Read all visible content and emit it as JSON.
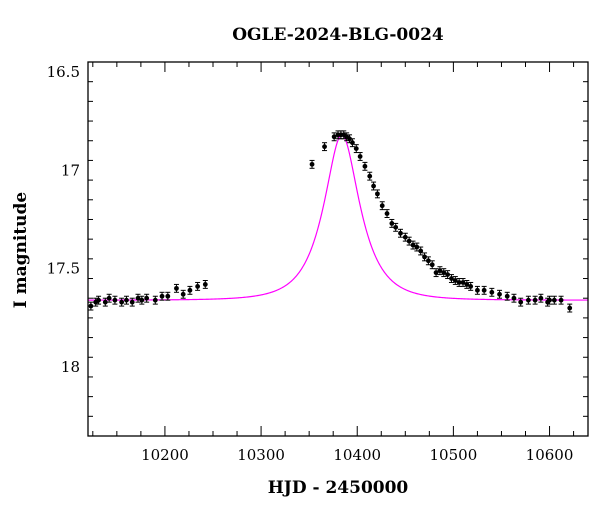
{
  "chart_data": {
    "type": "scatter",
    "title": "OGLE-2024-BLG-0024",
    "xlabel": "HJD - 2450000",
    "ylabel": "I magnitude",
    "xlim": [
      10120,
      10640
    ],
    "ylim": [
      18.35,
      16.45
    ],
    "y_inverted": true,
    "x_ticks": [
      10200,
      10300,
      10400,
      10500,
      10600
    ],
    "y_ticks": [
      16.5,
      17,
      17.5,
      18
    ],
    "y_tick_labels": [
      "16.5",
      "17",
      "17.5",
      "18"
    ],
    "colors": {
      "model": "#ff00ff",
      "points": "#000000",
      "axes": "#000000"
    },
    "model": {
      "name": "",
      "t0": 10384,
      "baseline": 17.66,
      "peak": 16.82,
      "tE": 32
    },
    "series": [
      {
        "name": "",
        "x": [
          10123,
          10128,
          10131,
          10138,
          10142,
          10148,
          10155,
          10160,
          10166,
          10172,
          10176,
          10181,
          10190,
          10197,
          10203,
          10212,
          10219,
          10226,
          10234,
          10242,
          10353,
          10366,
          10376,
          10380,
          10383,
          10386,
          10389,
          10392,
          10395,
          10399,
          10403,
          10408,
          10413,
          10417,
          10421,
          10426,
          10431,
          10436,
          10440,
          10445,
          10450,
          10454,
          10458,
          10462,
          10466,
          10470,
          10474,
          10478,
          10482,
          10486,
          10490,
          10494,
          10498,
          10502,
          10506,
          10510,
          10514,
          10518,
          10525,
          10532,
          10540,
          10548,
          10556,
          10563,
          10570,
          10578,
          10585,
          10591,
          10598,
          10600,
          10605,
          10612,
          10621
        ],
        "y": [
          17.69,
          17.67,
          17.66,
          17.67,
          17.65,
          17.66,
          17.67,
          17.66,
          17.67,
          17.65,
          17.66,
          17.65,
          17.66,
          17.64,
          17.64,
          17.6,
          17.63,
          17.61,
          17.59,
          17.58,
          16.97,
          16.88,
          16.83,
          16.82,
          16.82,
          16.82,
          16.83,
          16.84,
          16.86,
          16.89,
          16.93,
          16.98,
          17.03,
          17.08,
          17.12,
          17.18,
          17.22,
          17.27,
          17.29,
          17.32,
          17.34,
          17.36,
          17.38,
          17.39,
          17.41,
          17.44,
          17.46,
          17.48,
          17.52,
          17.51,
          17.52,
          17.53,
          17.55,
          17.56,
          17.57,
          17.57,
          17.58,
          17.59,
          17.61,
          17.61,
          17.62,
          17.63,
          17.64,
          17.65,
          17.67,
          17.66,
          17.66,
          17.65,
          17.67,
          17.66,
          17.66,
          17.66,
          17.7
        ],
        "err": 0.02
      }
    ]
  }
}
